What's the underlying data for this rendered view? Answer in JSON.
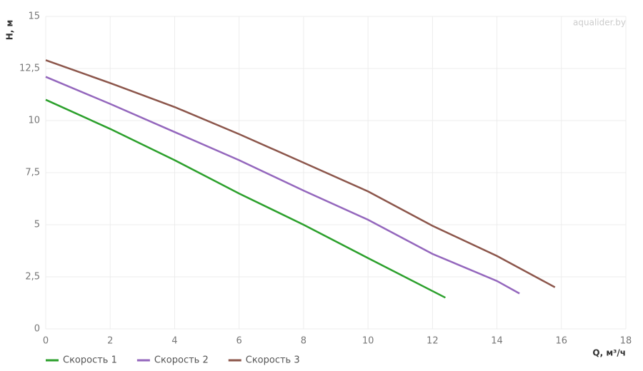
{
  "chart_data": {
    "type": "line",
    "watermark": "aqualider.by",
    "ylabel": "Н, м",
    "xlabel": "Q, м³/ч",
    "xlim": [
      0,
      18
    ],
    "xticks": [
      0,
      2,
      4,
      6,
      8,
      10,
      12,
      14,
      16,
      18
    ],
    "ylim": [
      0,
      15
    ],
    "yticks": [
      0,
      {
        "value": 2.5,
        "label": "2,5"
      },
      5,
      {
        "value": 7.5,
        "label": "7,5"
      },
      10,
      {
        "value": 12.5,
        "label": "12,5"
      },
      15
    ],
    "grid": true,
    "legend": "bottom-left",
    "series": [
      {
        "name": "Скорость 1",
        "color": "#2ca02c",
        "x": [
          0,
          2,
          4,
          6,
          8,
          10,
          12.4
        ],
        "values": [
          11,
          9.6,
          8.1,
          6.5,
          5.0,
          3.4,
          1.5
        ]
      },
      {
        "name": "Скорость 2",
        "color": "#9467bd",
        "x": [
          0,
          2,
          4,
          6,
          8,
          10,
          12,
          14,
          14.7
        ],
        "values": [
          12.1,
          10.8,
          9.45,
          8.1,
          6.64,
          5.24,
          3.6,
          2.3,
          1.7
        ]
      },
      {
        "name": "Скорость 3",
        "color": "#8c564b",
        "x": [
          0,
          2,
          4,
          6,
          8,
          10,
          12,
          14,
          15.8
        ],
        "values": [
          12.9,
          11.8,
          10.65,
          9.35,
          7.98,
          6.6,
          4.95,
          3.5,
          2.0
        ]
      }
    ]
  }
}
